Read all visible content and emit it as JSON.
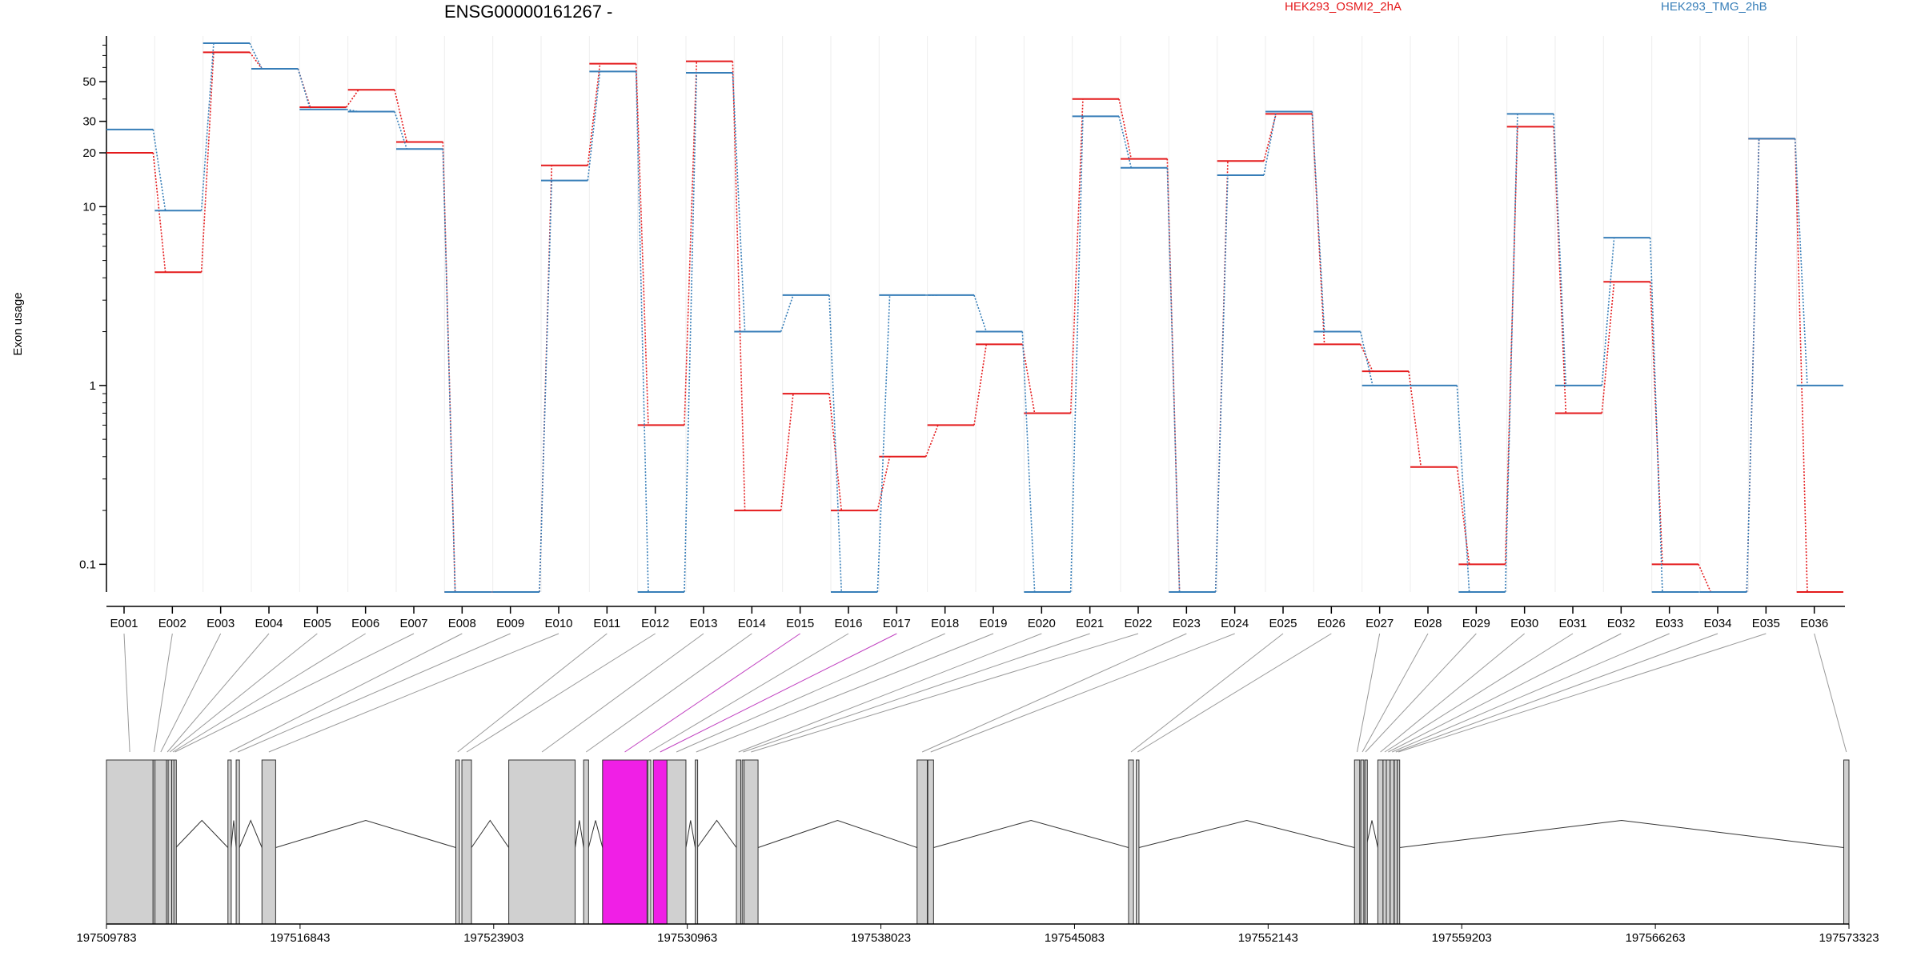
{
  "chart_data": {
    "type": "line",
    "title": "ENSG00000161267 -",
    "ylabel": "Exon usage",
    "xlabel": "",
    "y_scale": "log",
    "y_ticks": [
      0.1,
      1,
      10,
      20,
      30,
      50
    ],
    "y_tick_labels": [
      "0.1",
      "1",
      "10",
      "20",
      "30",
      "50"
    ],
    "ylim": [
      0.07,
      90
    ],
    "legend_position": "top",
    "categories": [
      "E001",
      "E002",
      "E003",
      "E004",
      "E005",
      "E006",
      "E007",
      "E008",
      "E009",
      "E010",
      "E011",
      "E012",
      "E013",
      "E014",
      "E015",
      "E016",
      "E017",
      "E018",
      "E019",
      "E020",
      "E021",
      "E022",
      "E023",
      "E024",
      "E025",
      "E026",
      "E027",
      "E028",
      "E029",
      "E030",
      "E031",
      "E032",
      "E033",
      "E034",
      "E035",
      "E036"
    ],
    "series": [
      {
        "name": "HEK293_OSMI2_2hA",
        "color": "#e41a1c",
        "values": [
          20,
          4.3,
          73,
          59,
          36,
          45,
          23,
          0.07,
          0.07,
          17,
          63,
          0.6,
          65,
          0.2,
          0.9,
          0.2,
          0.4,
          0.6,
          1.7,
          0.7,
          40,
          18.5,
          0.07,
          18,
          33,
          1.7,
          1.2,
          0.35,
          0.1,
          28,
          0.7,
          3.8,
          0.1,
          0.07,
          24,
          0.07
        ]
      },
      {
        "name": "HEK293_TMG_2hB",
        "color": "#377eb8",
        "values": [
          27,
          9.5,
          82,
          59,
          35,
          34,
          21,
          0.07,
          0.07,
          14,
          57,
          0.07,
          56,
          2,
          3.2,
          0.07,
          3.2,
          3.2,
          2,
          0.07,
          32,
          16.5,
          0.07,
          15,
          34,
          2,
          1,
          1,
          0.07,
          33,
          1,
          6.7,
          0.07,
          0.07,
          24,
          1
        ]
      }
    ]
  },
  "gene_model": {
    "coordinate_labels": [
      "197509783",
      "197516843",
      "197523903",
      "197530963",
      "197538023",
      "197545083",
      "197552143",
      "197559203",
      "197566263",
      "197573323"
    ],
    "coordinate_ticks": [
      197509783,
      197516843,
      197523903,
      197530963,
      197538023,
      197545083,
      197552143,
      197559203,
      197566263,
      197573323
    ],
    "range": [
      197509783,
      197573323
    ],
    "exon_fill": "#d0d0d0",
    "highlight_fill": "#f01fe6",
    "highlighted_exons": [
      "E015",
      "E017"
    ],
    "exons": [
      {
        "id": "E001",
        "start": 197509783,
        "end": 197511483
      },
      {
        "id": "E002",
        "start": 197511483,
        "end": 197511553
      },
      {
        "id": "E003",
        "start": 197511553,
        "end": 197511973
      },
      {
        "id": "E004",
        "start": 197511973,
        "end": 197512033
      },
      {
        "id": "E005",
        "start": 197512033,
        "end": 197512163
      },
      {
        "id": "E006",
        "start": 197512163,
        "end": 197512243
      },
      {
        "id": "E007",
        "start": 197512243,
        "end": 197512313
      },
      {
        "id": "E008",
        "start": 197514213,
        "end": 197514333
      },
      {
        "id": "E009",
        "start": 197514513,
        "end": 197514633
      },
      {
        "id": "E010",
        "start": 197515453,
        "end": 197515953
      },
      {
        "id": "E011",
        "start": 197522523,
        "end": 197522653
      },
      {
        "id": "E012",
        "start": 197522743,
        "end": 197523093
      },
      {
        "id": "E013",
        "start": 197524453,
        "end": 197526873
      },
      {
        "id": "E014",
        "start": 197527183,
        "end": 197527363
      },
      {
        "id": "E015",
        "start": 197527873,
        "end": 197529493
      },
      {
        "id": "E016",
        "start": 197529523,
        "end": 197529633
      },
      {
        "id": "E017",
        "start": 197529723,
        "end": 197530223
      },
      {
        "id": "E018",
        "start": 197530223,
        "end": 197530913
      },
      {
        "id": "E019",
        "start": 197531253,
        "end": 197531323
      },
      {
        "id": "E020",
        "start": 197532753,
        "end": 197532913
      },
      {
        "id": "E021",
        "start": 197532963,
        "end": 197533033
      },
      {
        "id": "E022",
        "start": 197533033,
        "end": 197533543
      },
      {
        "id": "E023",
        "start": 197539343,
        "end": 197539713
      },
      {
        "id": "E024",
        "start": 197539733,
        "end": 197539943
      },
      {
        "id": "E025",
        "start": 197547053,
        "end": 197547233
      },
      {
        "id": "E026",
        "start": 197547333,
        "end": 197547433
      },
      {
        "id": "E027",
        "start": 197555293,
        "end": 197555483
      },
      {
        "id": "E028",
        "start": 197555523,
        "end": 197555633
      },
      {
        "id": "E029",
        "start": 197555673,
        "end": 197555713
      },
      {
        "id": "E030",
        "start": 197556143,
        "end": 197556333
      },
      {
        "id": "E031",
        "start": 197556333,
        "end": 197556453
      },
      {
        "id": "E032",
        "start": 197556453,
        "end": 197556593
      },
      {
        "id": "E033",
        "start": 197556593,
        "end": 197556733
      },
      {
        "id": "E034",
        "start": 197556743,
        "end": 197556853
      },
      {
        "id": "E035",
        "start": 197556853,
        "end": 197556933
      },
      {
        "id": "E036",
        "start": 197573133,
        "end": 197573323
      }
    ]
  }
}
